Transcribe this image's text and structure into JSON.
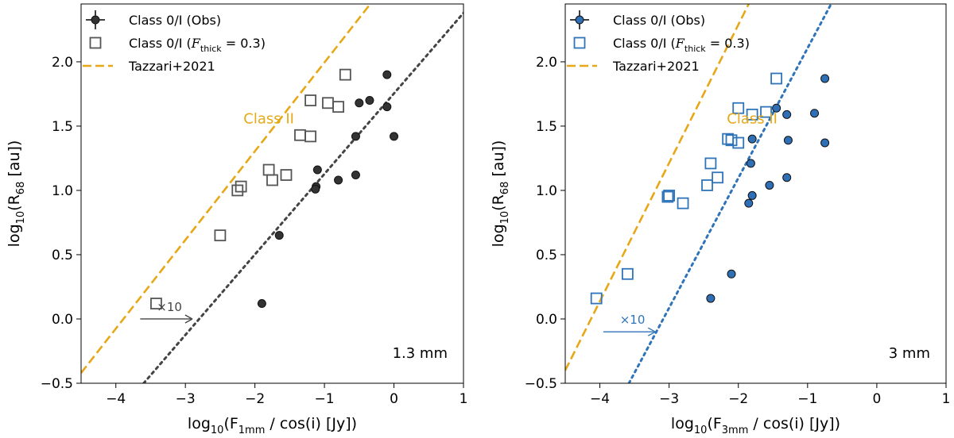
{
  "chart_data": [
    {
      "type": "scatter",
      "panel": "left",
      "xlabel": "log$_{10}$(F$_{1mm}$ / cos(i) [Jy])",
      "ylabel": "log$_{10}$(R$_{68}$ [au])",
      "xlim": [
        -4.5,
        1.0
      ],
      "ylim": [
        -0.5,
        2.45
      ],
      "xticks": [
        -4,
        -3,
        -2,
        -1,
        0,
        1
      ],
      "yticks": [
        -0.5,
        0.0,
        0.5,
        1.0,
        1.5,
        2.0
      ],
      "grid": false,
      "legend_position": "top-left",
      "legend": [
        "Class 0/I (Obs)",
        "Class 0/I ($\\mathcal{F}_{thick} = 0.3$)",
        "Tazzari+2021"
      ],
      "annotations": {
        "region": "Class II",
        "wavelength": "1.3 mm",
        "shift": "×10"
      },
      "colors": {
        "obs": "#333333",
        "model": "#555555",
        "tazzari": "#e6a817",
        "fit": "#444444"
      },
      "series": [
        {
          "name": "Class 0/I (Obs)",
          "marker": "circle",
          "points": [
            [
              -0.1,
              1.9
            ],
            [
              -0.1,
              1.65
            ],
            [
              -0.35,
              1.7
            ],
            [
              -0.5,
              1.68
            ],
            [
              0.0,
              1.42
            ],
            [
              -0.55,
              1.42
            ],
            [
              -0.55,
              1.12
            ],
            [
              -0.8,
              1.08
            ],
            [
              -1.1,
              1.16
            ],
            [
              -1.12,
              1.03
            ],
            [
              -1.13,
              1.01
            ],
            [
              -1.65,
              0.65
            ],
            [
              -1.9,
              0.12
            ]
          ]
        },
        {
          "name": "Class 0/I ($\\mathcal{F}_{thick} = 0.3$)",
          "marker": "square",
          "points": [
            [
              -0.7,
              1.9
            ],
            [
              -1.2,
              1.7
            ],
            [
              -0.95,
              1.68
            ],
            [
              -0.8,
              1.65
            ],
            [
              -1.35,
              1.43
            ],
            [
              -1.2,
              1.42
            ],
            [
              -1.8,
              1.16
            ],
            [
              -1.55,
              1.12
            ],
            [
              -1.75,
              1.08
            ],
            [
              -2.2,
              1.03
            ],
            [
              -2.25,
              1.0
            ],
            [
              -2.5,
              0.65
            ],
            [
              -3.42,
              0.12
            ]
          ]
        },
        {
          "name": "Tazzari+2021",
          "style": "dashed",
          "line": [
            [
              -4.5,
              -0.42
            ],
            [
              -0.34,
              2.45
            ]
          ]
        },
        {
          "name": "fit",
          "style": "dotted",
          "line": [
            [
              -3.6,
              -0.5
            ],
            [
              1.0,
              2.38
            ]
          ]
        }
      ],
      "arrow": {
        "from": [
          -3.65,
          0.0
        ],
        "to": [
          -2.9,
          0.0
        ]
      }
    },
    {
      "type": "scatter",
      "panel": "right",
      "xlabel": "log$_{10}$(F$_{3mm}$ / cos(i) [Jy])",
      "ylabel": "log$_{10}$(R$_{68}$ [au])",
      "xlim": [
        -4.5,
        1.0
      ],
      "ylim": [
        -0.5,
        2.45
      ],
      "xticks": [
        -4,
        -3,
        -2,
        -1,
        0,
        1
      ],
      "yticks": [
        -0.5,
        0.0,
        0.5,
        1.0,
        1.5,
        2.0
      ],
      "grid": false,
      "legend_position": "top-left",
      "legend": [
        "Class 0/I (Obs)",
        "Class 0/I ($\\mathcal{F}_{thick} = 0.3$)",
        "Tazzari+2021"
      ],
      "annotations": {
        "region": "Class II",
        "wavelength": "3 mm",
        "shift": "×10"
      },
      "colors": {
        "obs": "#2f6fb5",
        "model": "#2f74b8",
        "tazzari": "#e6a817",
        "fit": "#2f74b8"
      },
      "series": [
        {
          "name": "Class 0/I (Obs)",
          "marker": "circle",
          "points": [
            [
              -0.75,
              1.87
            ],
            [
              -1.45,
              1.64
            ],
            [
              -1.3,
              1.59
            ],
            [
              -0.9,
              1.6
            ],
            [
              -1.8,
              1.4
            ],
            [
              -1.28,
              1.39
            ],
            [
              -0.75,
              1.37
            ],
            [
              -1.82,
              1.21
            ],
            [
              -1.3,
              1.1
            ],
            [
              -1.55,
              1.04
            ],
            [
              -1.8,
              0.96
            ],
            [
              -1.85,
              0.9
            ],
            [
              -2.1,
              0.35
            ],
            [
              -2.4,
              0.16
            ]
          ]
        },
        {
          "name": "Class 0/I ($\\mathcal{F}_{thick} = 0.3$)",
          "marker": "square",
          "points": [
            [
              -1.45,
              1.87
            ],
            [
              -2.0,
              1.64
            ],
            [
              -1.6,
              1.61
            ],
            [
              -1.8,
              1.59
            ],
            [
              -2.15,
              1.4
            ],
            [
              -2.1,
              1.39
            ],
            [
              -2.0,
              1.37
            ],
            [
              -2.4,
              1.21
            ],
            [
              -2.3,
              1.1
            ],
            [
              -2.45,
              1.04
            ],
            [
              -3.0,
              0.96
            ],
            [
              -3.02,
              0.95
            ],
            [
              -2.8,
              0.9
            ],
            [
              -3.6,
              0.35
            ],
            [
              -4.05,
              0.16
            ]
          ]
        },
        {
          "name": "Tazzari+2021",
          "style": "dashed",
          "line": [
            [
              -4.5,
              -0.4
            ],
            [
              -1.85,
              2.45
            ]
          ]
        },
        {
          "name": "fit",
          "style": "dotted",
          "line": [
            [
              -3.58,
              -0.5
            ],
            [
              -0.66,
              2.45
            ]
          ]
        }
      ],
      "arrow": {
        "from": [
          -3.95,
          -0.1
        ],
        "to": [
          -3.2,
          -0.1
        ]
      }
    }
  ]
}
